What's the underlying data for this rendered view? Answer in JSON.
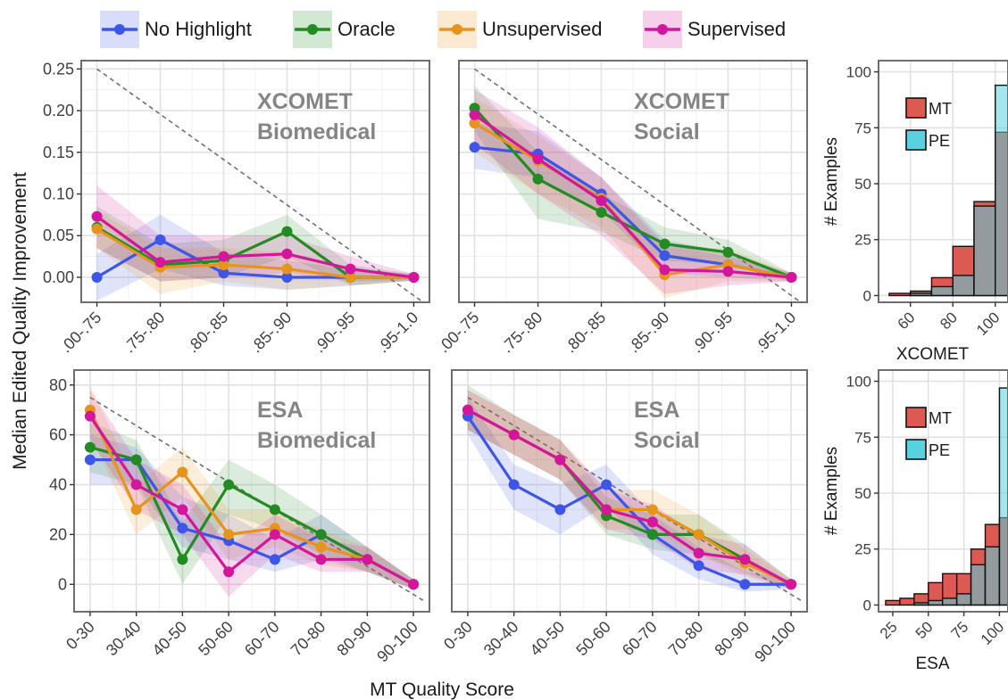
{
  "legend": [
    {
      "label": "No Highlight",
      "color": "#3d55e8"
    },
    {
      "label": "Oracle",
      "color": "#238b23"
    },
    {
      "label": "Unsupervised",
      "color": "#e6941c"
    },
    {
      "label": "Supervised",
      "color": "#d3169c"
    }
  ],
  "ylabel": "Median Edited Quality Improvement",
  "xlabel": "MT Quality Score",
  "chart_data": [
    {
      "type": "line",
      "panel": "XCOMET Biomedical",
      "label": [
        "XCOMET",
        "Biomedical"
      ],
      "categories": [
        ".00-.75",
        ".75-.80",
        ".80-.85",
        ".85-.90",
        ".90-.95",
        ".95-1.0"
      ],
      "ylim": [
        -0.03,
        0.26
      ],
      "yticks": [
        0.0,
        0.05,
        0.1,
        0.15,
        0.2,
        0.25
      ],
      "ytick_labels": [
        "0.00",
        "0.05",
        "0.10",
        "0.15",
        "0.20",
        "0.25"
      ],
      "reference_line": [
        0.25,
        0.0
      ],
      "series": [
        {
          "name": "No Highlight",
          "values": [
            0.0,
            0.045,
            0.005,
            0.0,
            0.0,
            0.0
          ],
          "band": [
            [
              -0.028,
              0.028
            ],
            [
              0.01,
              0.075
            ],
            [
              -0.01,
              0.03
            ],
            [
              -0.015,
              0.02
            ],
            [
              -0.01,
              0.01
            ],
            [
              -0.004,
              0.004
            ]
          ]
        },
        {
          "name": "Oracle",
          "values": [
            0.06,
            0.015,
            0.02,
            0.055,
            0.0,
            0.0
          ],
          "band": [
            [
              0.035,
              0.085
            ],
            [
              -0.005,
              0.04
            ],
            [
              0.0,
              0.045
            ],
            [
              0.025,
              0.075
            ],
            [
              -0.01,
              0.015
            ],
            [
              -0.004,
              0.004
            ]
          ]
        },
        {
          "name": "Unsupervised",
          "values": [
            0.058,
            0.012,
            0.015,
            0.01,
            0.0,
            0.0
          ],
          "band": [
            [
              0.035,
              0.08
            ],
            [
              -0.02,
              0.035
            ],
            [
              -0.005,
              0.035
            ],
            [
              -0.015,
              0.03
            ],
            [
              -0.01,
              0.01
            ],
            [
              -0.004,
              0.004
            ]
          ]
        },
        {
          "name": "Supervised",
          "values": [
            0.073,
            0.018,
            0.025,
            0.028,
            0.01,
            0.0
          ],
          "band": [
            [
              0.035,
              0.11
            ],
            [
              -0.005,
              0.05
            ],
            [
              0.0,
              0.05
            ],
            [
              0.005,
              0.05
            ],
            [
              -0.005,
              0.025
            ],
            [
              -0.004,
              0.004
            ]
          ]
        }
      ]
    },
    {
      "type": "line",
      "panel": "XCOMET Social",
      "label": [
        "XCOMET",
        "Social"
      ],
      "categories": [
        ".00-.75",
        ".75-.80",
        ".80-.85",
        ".85-.90",
        ".90-.95",
        ".95-1.0"
      ],
      "ylim": [
        -0.03,
        0.26
      ],
      "yticks": [
        0.0,
        0.05,
        0.1,
        0.15,
        0.2,
        0.25
      ],
      "ytick_labels": [],
      "reference_line": [
        0.25,
        0.0
      ],
      "series": [
        {
          "name": "No Highlight",
          "values": [
            0.156,
            0.148,
            0.1,
            0.026,
            0.015,
            0.0
          ],
          "band": [
            [
              0.13,
              0.185
            ],
            [
              0.12,
              0.175
            ],
            [
              0.08,
              0.12
            ],
            [
              0.005,
              0.045
            ],
            [
              0.0,
              0.03
            ],
            [
              -0.005,
              0.005
            ]
          ]
        },
        {
          "name": "Oracle",
          "values": [
            0.203,
            0.118,
            0.078,
            0.04,
            0.03,
            0.0
          ],
          "band": [
            [
              0.175,
              0.23
            ],
            [
              0.07,
              0.15
            ],
            [
              0.055,
              0.1
            ],
            [
              0.02,
              0.06
            ],
            [
              0.015,
              0.045
            ],
            [
              -0.005,
              0.005
            ]
          ]
        },
        {
          "name": "Unsupervised",
          "values": [
            0.185,
            0.14,
            0.095,
            0.003,
            0.015,
            0.0
          ],
          "band": [
            [
              0.15,
              0.215
            ],
            [
              0.1,
              0.17
            ],
            [
              0.06,
              0.12
            ],
            [
              -0.025,
              0.035
            ],
            [
              -0.005,
              0.035
            ],
            [
              -0.005,
              0.005
            ]
          ]
        },
        {
          "name": "Supervised",
          "values": [
            0.195,
            0.142,
            0.092,
            0.009,
            0.007,
            0.0
          ],
          "band": [
            [
              0.16,
              0.225
            ],
            [
              0.1,
              0.18
            ],
            [
              0.05,
              0.12
            ],
            [
              -0.02,
              0.04
            ],
            [
              -0.01,
              0.025
            ],
            [
              -0.005,
              0.005
            ]
          ]
        }
      ]
    },
    {
      "type": "bar",
      "panel": "XCOMET histogram",
      "xlabel": "XCOMET",
      "ylabel": "# Examples",
      "xlim": [
        45,
        106
      ],
      "xticks": [
        60,
        80,
        100
      ],
      "ylim": [
        -3,
        105
      ],
      "yticks": [
        0,
        25,
        50,
        75,
        100
      ],
      "bin_edges": [
        50,
        60,
        70,
        80,
        90,
        100,
        110
      ],
      "series": [
        {
          "name": "MT",
          "color": "#dd5a52",
          "values": [
            1,
            2,
            8,
            22,
            42,
            73
          ]
        },
        {
          "name": "PE",
          "color": "#58d2dd",
          "values": [
            0,
            1,
            4,
            9,
            40,
            94
          ]
        }
      ]
    },
    {
      "type": "line",
      "panel": "ESA Biomedical",
      "label": [
        "ESA",
        "Biomedical"
      ],
      "categories": [
        "0-30",
        "30-40",
        "40-50",
        "50-60",
        "60-70",
        "70-80",
        "80-90",
        "90-100"
      ],
      "ylim": [
        -11,
        86
      ],
      "yticks": [
        0,
        20,
        40,
        60,
        80
      ],
      "ytick_labels": [
        "0",
        "20",
        "40",
        "60",
        "80"
      ],
      "reference_line": [
        75,
        0
      ],
      "series": [
        {
          "name": "No Highlight",
          "values": [
            50,
            50,
            22.5,
            17.5,
            10,
            20,
            10,
            0
          ],
          "band": [
            [
              40,
              60
            ],
            [
              40,
              55
            ],
            [
              15,
              35
            ],
            [
              10,
              28
            ],
            [
              5,
              18
            ],
            [
              10,
              28
            ],
            [
              5,
              15
            ],
            [
              -2,
              2
            ]
          ]
        },
        {
          "name": "Oracle",
          "values": [
            55,
            50,
            10,
            40,
            30,
            20,
            10,
            0
          ],
          "band": [
            [
              45,
              65
            ],
            [
              40,
              58
            ],
            [
              0,
              25
            ],
            [
              28,
              50
            ],
            [
              22,
              40
            ],
            [
              12,
              28
            ],
            [
              5,
              15
            ],
            [
              -2,
              2
            ]
          ]
        },
        {
          "name": "Unsupervised",
          "values": [
            70,
            30,
            45,
            20,
            22.5,
            15,
            10,
            0
          ],
          "band": [
            [
              60,
              80
            ],
            [
              20,
              40
            ],
            [
              35,
              55
            ],
            [
              10,
              30
            ],
            [
              15,
              30
            ],
            [
              8,
              22
            ],
            [
              5,
              15
            ],
            [
              -2,
              2
            ]
          ]
        },
        {
          "name": "Supervised",
          "values": [
            67.5,
            40,
            30,
            5,
            20,
            10,
            10,
            0
          ],
          "band": [
            [
              58,
              78
            ],
            [
              30,
              50
            ],
            [
              20,
              40
            ],
            [
              -5,
              15
            ],
            [
              12,
              28
            ],
            [
              5,
              18
            ],
            [
              5,
              15
            ],
            [
              -2,
              2
            ]
          ]
        }
      ]
    },
    {
      "type": "line",
      "panel": "ESA Social",
      "label": [
        "ESA",
        "Social"
      ],
      "categories": [
        "0-30",
        "30-40",
        "40-50",
        "50-60",
        "60-70",
        "70-80",
        "80-90",
        "90-100"
      ],
      "ylim": [
        -11,
        86
      ],
      "yticks": [
        0,
        20,
        40,
        60,
        80
      ],
      "ytick_labels": [],
      "reference_line": [
        75,
        0
      ],
      "series": [
        {
          "name": "No Highlight",
          "values": [
            67.5,
            40,
            30,
            40,
            20,
            7.5,
            0,
            0
          ],
          "band": [
            [
              60,
              75
            ],
            [
              30,
              48
            ],
            [
              20,
              40
            ],
            [
              32,
              48
            ],
            [
              12,
              28
            ],
            [
              2,
              15
            ],
            [
              -3,
              5
            ],
            [
              -2,
              2
            ]
          ]
        },
        {
          "name": "Oracle",
          "values": [
            70,
            60,
            50,
            27.5,
            20,
            20,
            10,
            0
          ],
          "band": [
            [
              62,
              80
            ],
            [
              52,
              68
            ],
            [
              42,
              58
            ],
            [
              20,
              35
            ],
            [
              14,
              28
            ],
            [
              12,
              28
            ],
            [
              5,
              16
            ],
            [
              -2,
              2
            ]
          ]
        },
        {
          "name": "Unsupervised",
          "values": [
            70,
            60,
            50,
            30,
            30,
            20,
            8.5,
            0
          ],
          "band": [
            [
              62,
              78
            ],
            [
              52,
              68
            ],
            [
              42,
              58
            ],
            [
              22,
              38
            ],
            [
              22,
              38
            ],
            [
              12,
              28
            ],
            [
              3,
              14
            ],
            [
              -2,
              2
            ]
          ]
        },
        {
          "name": "Supervised",
          "values": [
            70,
            60,
            50,
            30,
            25,
            12.5,
            10,
            0
          ],
          "band": [
            [
              62,
              78
            ],
            [
              52,
              68
            ],
            [
              42,
              58
            ],
            [
              22,
              38
            ],
            [
              18,
              32
            ],
            [
              6,
              20
            ],
            [
              4,
              16
            ],
            [
              -2,
              2
            ]
          ]
        }
      ]
    },
    {
      "type": "bar",
      "panel": "ESA histogram",
      "xlabel": "ESA",
      "ylabel": "# Examples",
      "xlim": [
        15,
        106
      ],
      "xticks": [
        25,
        50,
        75,
        100
      ],
      "ylim": [
        -3,
        105
      ],
      "yticks": [
        0,
        25,
        50,
        75,
        100
      ],
      "bin_edges": [
        20,
        30,
        40,
        50,
        60,
        70,
        80,
        90,
        100,
        110
      ],
      "series": [
        {
          "name": "MT",
          "color": "#dd5a52",
          "values": [
            2,
            3,
            5,
            10,
            14,
            14,
            25,
            36,
            39
          ]
        },
        {
          "name": "PE",
          "color": "#58d2dd",
          "values": [
            0,
            0,
            1,
            2,
            3,
            5,
            18,
            26,
            97
          ]
        }
      ]
    }
  ]
}
